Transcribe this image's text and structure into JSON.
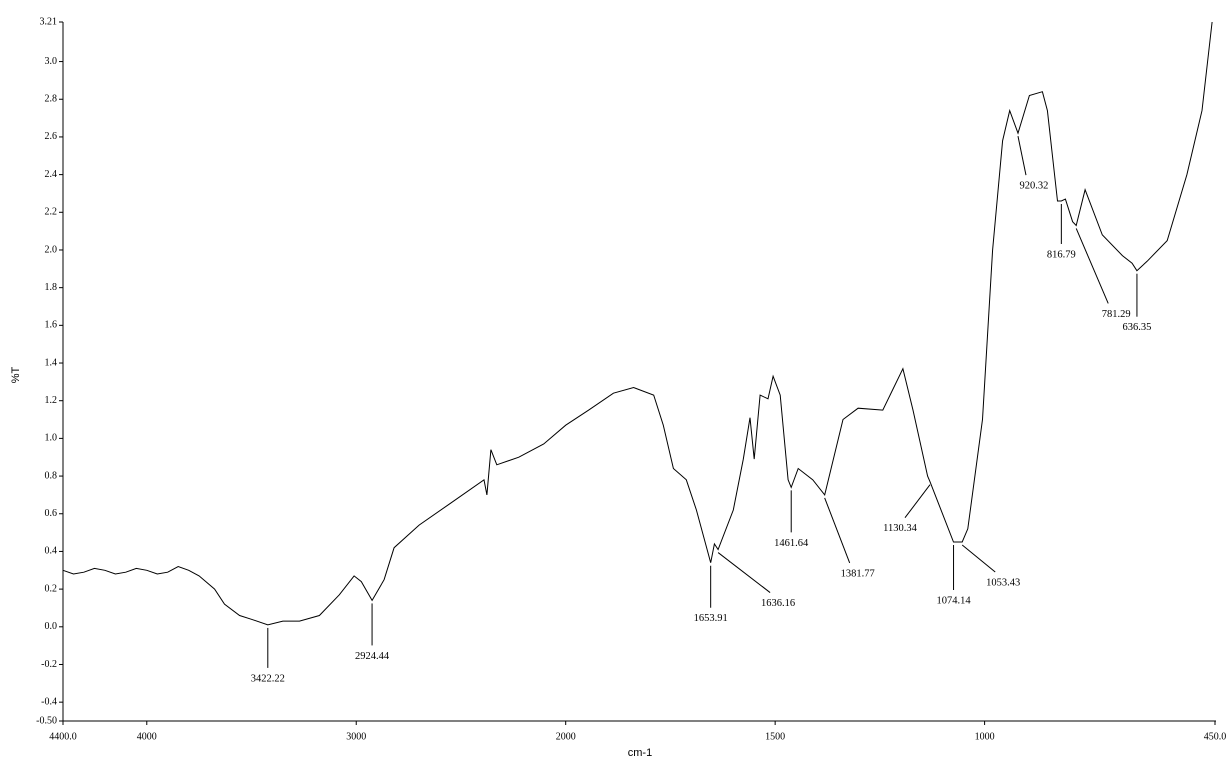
{
  "chart_data": {
    "type": "line",
    "xlabel": "cm-1",
    "ylabel": "%T",
    "x": [
      4400,
      4350,
      4300,
      4250,
      4200,
      4150,
      4100,
      4050,
      4000,
      3950,
      3900,
      3850,
      3800,
      3750,
      3676,
      3629,
      3557,
      3500,
      3422.22,
      3350,
      3271,
      3176,
      3081,
      3010,
      2976,
      2924.44,
      2867,
      2819,
      2700,
      2557,
      2390,
      2376,
      2357,
      2329,
      2224,
      2105,
      2000,
      1945,
      1886,
      1838,
      1790,
      1767,
      1743,
      1712,
      1688,
      1653.91,
      1645,
      1636.16,
      1600,
      1576,
      1560,
      1550,
      1536,
      1517,
      1505,
      1488,
      1469,
      1461.64,
      1445,
      1410,
      1381.77,
      1338,
      1302,
      1243,
      1195,
      1171,
      1136,
      1130.34,
      1074.14,
      1053.43,
      1040,
      1005,
      981,
      957,
      940,
      920.32,
      893,
      862,
      850,
      826,
      816.79,
      807,
      790,
      781.29,
      760,
      719,
      671,
      648,
      636.35,
      612,
      564,
      517,
      481,
      457
    ],
    "values": [
      0.3,
      0.28,
      0.29,
      0.31,
      0.3,
      0.28,
      0.29,
      0.31,
      0.3,
      0.28,
      0.29,
      0.32,
      0.3,
      0.27,
      0.2,
      0.12,
      0.06,
      0.04,
      0.01,
      0.03,
      0.03,
      0.06,
      0.17,
      0.27,
      0.24,
      0.14,
      0.25,
      0.42,
      0.54,
      0.65,
      0.78,
      0.7,
      0.94,
      0.86,
      0.9,
      0.97,
      1.07,
      1.15,
      1.24,
      1.27,
      1.23,
      1.07,
      0.84,
      0.78,
      0.62,
      0.34,
      0.44,
      0.41,
      0.62,
      0.89,
      1.11,
      0.89,
      1.23,
      1.21,
      1.33,
      1.23,
      0.78,
      0.74,
      0.84,
      0.78,
      0.7,
      1.1,
      1.16,
      1.15,
      1.37,
      1.15,
      0.8,
      0.77,
      0.45,
      0.45,
      0.52,
      1.1,
      2.0,
      2.58,
      2.74,
      2.62,
      2.82,
      2.84,
      2.74,
      2.26,
      2.26,
      2.27,
      2.15,
      2.13,
      2.32,
      2.08,
      1.97,
      1.93,
      1.89,
      1.94,
      2.05,
      2.4,
      2.74,
      3.21
    ],
    "color": "#000000",
    "annotations": [
      3422.22,
      2924.44,
      1653.91,
      1636.16,
      1461.64,
      1381.77,
      1130.34,
      1074.14,
      1053.43,
      920.32,
      816.79,
      781.29,
      636.35
    ],
    "xlim": [
      4400,
      450
    ],
    "x_break": 2000,
    "x_break_expansion": 2,
    "xticks": [
      {
        "value": 4400,
        "label": "4400.0"
      },
      4000,
      3000,
      2000,
      1500,
      1000,
      {
        "value": 450,
        "label": "450.0"
      }
    ],
    "ylim": [
      -0.5,
      3.21
    ],
    "yticks": [
      3.21,
      {
        "value": 3,
        "label": "3.0"
      },
      2.8,
      2.6,
      2.4,
      2.2,
      {
        "value": 2,
        "label": "2.0"
      },
      1.8,
      1.6,
      1.4,
      1.2,
      {
        "value": 1,
        "label": "1.0"
      },
      0.8,
      0.6,
      0.4,
      0.2,
      {
        "value": 0,
        "label": "0.0"
      },
      -0.2,
      -0.4,
      {
        "value": -0.5,
        "label": "-0.50"
      }
    ]
  }
}
